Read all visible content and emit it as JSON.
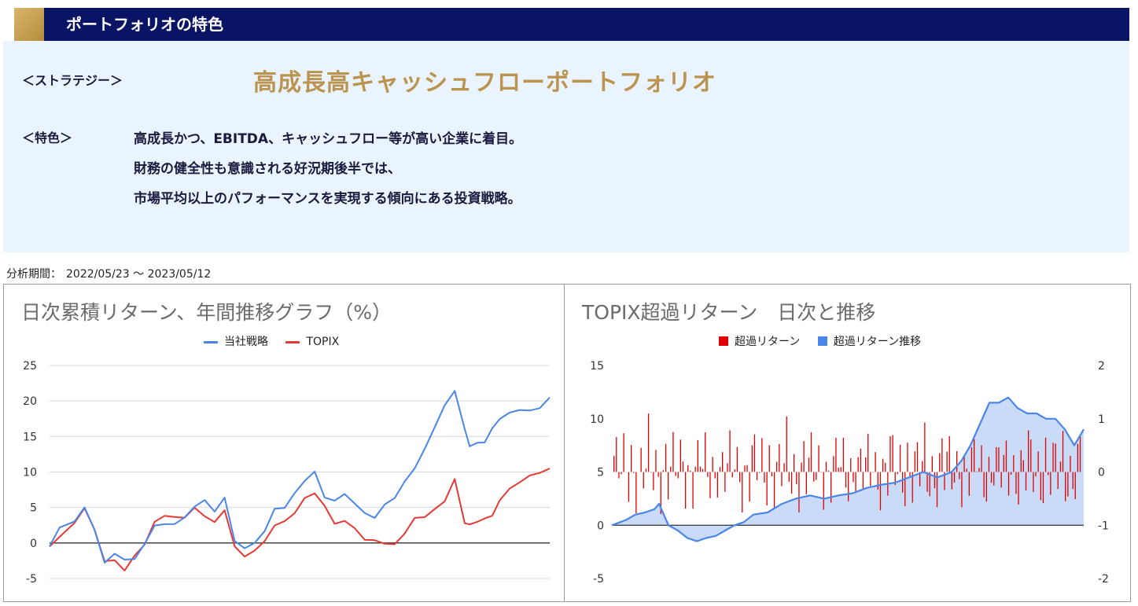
{
  "header": {
    "title": "ポートフォリオの特色"
  },
  "strategy": {
    "label": "＜ストラテジー＞",
    "name": "高成長高キャッシュフローポートフォリオ"
  },
  "feature": {
    "label": "＜特色＞",
    "lines": [
      "高成長かつ、EBITDA、キャッシュフロー等が高い企業に着目。",
      "財務の健全性も意識される好況期後半では、",
      "市場平均以上のパフォーマンスを実現する傾向にある投資戦略。"
    ]
  },
  "period": {
    "label": "分析期間：",
    "value": "2022/05/23 ～ 2023/05/12"
  },
  "colors": {
    "strategy": "#4a86e8",
    "topix": "#e53935",
    "excess_bar": "#e00000",
    "excess_trend": "#4a86e8",
    "excess_area": "#c9dbf7"
  },
  "chart_data": [
    {
      "type": "line",
      "title": "日次累積リターン、年間推移グラフ（%）",
      "legend_position": "top",
      "ylim": [
        -5,
        25
      ],
      "yticks": [
        "25",
        "20",
        "15",
        "10",
        "5",
        "0",
        "-5"
      ],
      "x_period": [
        "2022/05/23",
        "2023/05/12"
      ],
      "series": [
        {
          "name": "当社戦略",
          "x_frac": [
            0,
            0.02,
            0.05,
            0.07,
            0.09,
            0.11,
            0.13,
            0.15,
            0.17,
            0.19,
            0.21,
            0.23,
            0.25,
            0.27,
            0.29,
            0.31,
            0.33,
            0.35,
            0.37,
            0.39,
            0.41,
            0.43,
            0.45,
            0.47,
            0.49,
            0.51,
            0.53,
            0.55,
            0.57,
            0.59,
            0.61,
            0.63,
            0.65,
            0.67,
            0.69,
            0.71,
            0.73,
            0.75,
            0.77,
            0.79,
            0.81,
            0.83,
            0.84,
            0.855,
            0.87,
            0.885,
            0.9,
            0.92,
            0.94,
            0.96,
            0.98,
            1.0
          ],
          "values": [
            -0.5,
            1.5,
            2.5,
            4.5,
            2.0,
            -2.0,
            -1.0,
            -2.0,
            -2.5,
            -1.0,
            2.0,
            2.5,
            3.0,
            4.5,
            5.5,
            6.0,
            4.0,
            5.5,
            0.0,
            -0.5,
            0.5,
            2.5,
            5.0,
            4.5,
            6.5,
            8.0,
            10.0,
            7.0,
            6.5,
            7.5,
            5.5,
            3.5,
            3.0,
            5.0,
            6.5,
            9.5,
            11.0,
            13.5,
            16.0,
            18.5,
            21.0,
            16.0,
            14.0,
            15.0,
            14.5,
            16.0,
            17.0,
            17.5,
            18.5,
            19.0,
            19.5,
            20.5
          ]
        },
        {
          "name": "TOPIX",
          "x_frac": [
            0,
            0.02,
            0.05,
            0.07,
            0.09,
            0.11,
            0.13,
            0.15,
            0.17,
            0.19,
            0.21,
            0.23,
            0.25,
            0.27,
            0.29,
            0.31,
            0.33,
            0.35,
            0.37,
            0.39,
            0.41,
            0.43,
            0.45,
            0.47,
            0.49,
            0.51,
            0.53,
            0.55,
            0.57,
            0.59,
            0.61,
            0.63,
            0.65,
            0.67,
            0.69,
            0.71,
            0.73,
            0.75,
            0.77,
            0.79,
            0.81,
            0.83,
            0.84,
            0.855,
            0.87,
            0.885,
            0.9,
            0.92,
            0.94,
            0.96,
            0.98,
            1.0
          ],
          "values": [
            -0.5,
            1.0,
            2.5,
            4.0,
            1.5,
            -2.5,
            -2.0,
            -3.0,
            -1.5,
            -0.5,
            2.5,
            3.0,
            3.5,
            4.0,
            5.5,
            4.5,
            3.0,
            4.0,
            -1.0,
            -2.5,
            -1.0,
            1.0,
            3.0,
            3.5,
            4.0,
            5.5,
            6.5,
            5.0,
            3.0,
            4.0,
            2.5,
            0.5,
            0.0,
            -1.0,
            -0.5,
            1.5,
            4.0,
            4.5,
            5.0,
            5.5,
            8.5,
            2.0,
            2.5,
            3.5,
            4.0,
            4.5,
            6.0,
            7.0,
            8.0,
            9.0,
            10.0,
            10.5
          ]
        }
      ]
    },
    {
      "type": "bar+area",
      "title": "TOPIX超過リターン　日次と推移",
      "legend_position": "top",
      "left_axis": {
        "ylim": [
          -5,
          15
        ],
        "ticks": [
          "15",
          "10",
          "5",
          "0",
          "-5"
        ]
      },
      "right_axis": {
        "ylim": [
          -2,
          2
        ],
        "ticks": [
          "2",
          "1",
          "0",
          "-1",
          "-2"
        ]
      },
      "series": [
        {
          "name": "超過リターン",
          "axis": "right",
          "type": "bar"
        },
        {
          "name": "超過リターン推移",
          "axis": "left",
          "type": "area",
          "x_frac": [
            0,
            0.03,
            0.05,
            0.07,
            0.09,
            0.1,
            0.12,
            0.14,
            0.16,
            0.18,
            0.2,
            0.22,
            0.24,
            0.26,
            0.28,
            0.3,
            0.33,
            0.36,
            0.39,
            0.42,
            0.45,
            0.48,
            0.51,
            0.54,
            0.57,
            0.6,
            0.63,
            0.66,
            0.69,
            0.72,
            0.74,
            0.76,
            0.78,
            0.8,
            0.82,
            0.84,
            0.86,
            0.88,
            0.9,
            0.92,
            0.94,
            0.96,
            0.98,
            1.0
          ],
          "values": [
            0.0,
            0.5,
            1.0,
            1.2,
            1.5,
            2.0,
            0.0,
            -0.5,
            -1.2,
            -1.5,
            -1.2,
            -1.0,
            -0.5,
            0.0,
            0.3,
            1.0,
            1.2,
            2.0,
            2.5,
            2.8,
            2.5,
            2.8,
            3.0,
            3.5,
            3.8,
            4.0,
            4.5,
            5.0,
            4.5,
            5.0,
            6.0,
            7.5,
            9.5,
            11.5,
            11.5,
            12.0,
            11.0,
            10.5,
            10.5,
            10.0,
            10.0,
            9.0,
            7.5,
            9.0
          ]
        }
      ]
    }
  ]
}
